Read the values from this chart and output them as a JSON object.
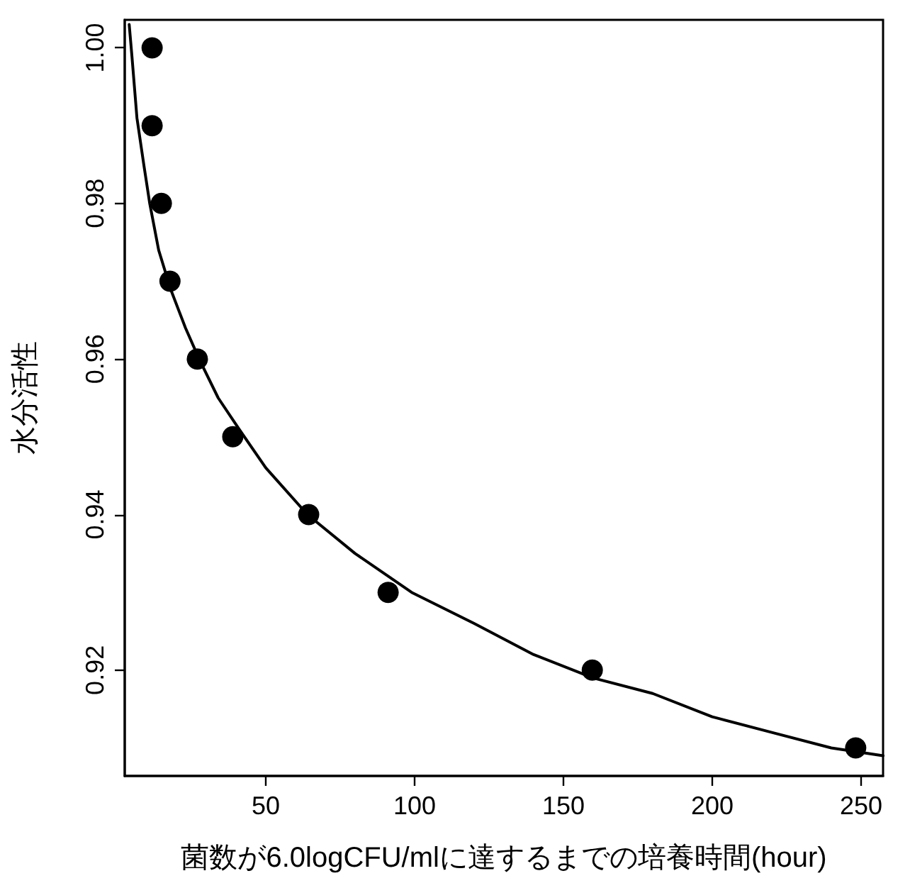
{
  "chart_data": {
    "type": "scatter",
    "xlabel": "菌数が6.0logCFU/mlに達するまでの培養時間(hour)",
    "ylabel": "水分活性",
    "xlim": [
      2.6,
      257.4
    ],
    "xticks": [
      50,
      100,
      150,
      200,
      250
    ],
    "ylim": [
      0.9064,
      1.0036
    ],
    "yticks": [
      0.92,
      0.94,
      0.96,
      0.98,
      {
        "value": 1.0,
        "label": "1.00"
      }
    ],
    "grid": false,
    "marker": "circle",
    "series": [
      {
        "color": "#000000",
        "x": [
          11.8,
          11.8,
          14.9,
          17.8,
          27,
          38.9,
          64.4,
          91.1,
          159.7,
          248.2
        ],
        "values": [
          1.0,
          0.99,
          0.98,
          0.97,
          0.96,
          0.95,
          0.94,
          0.93,
          0.92,
          0.91
        ]
      },
      {
        "type": "line",
        "color": "#000000",
        "marker": "none",
        "line_style": "solid",
        "x": [
          4.1,
          5,
          6.7,
          9,
          11,
          14,
          18,
          23,
          27.6,
          34,
          41,
          50,
          64,
          80,
          99,
          120,
          140,
          160,
          180,
          200,
          220,
          240,
          257.4
        ],
        "values": [
          1.003,
          0.999,
          0.991,
          0.985,
          0.98,
          0.974,
          0.969,
          0.964,
          0.96,
          0.955,
          0.951,
          0.946,
          0.94,
          0.935,
          0.93,
          0.926,
          0.922,
          0.919,
          0.917,
          0.914,
          0.912,
          0.91,
          0.909
        ]
      }
    ]
  }
}
